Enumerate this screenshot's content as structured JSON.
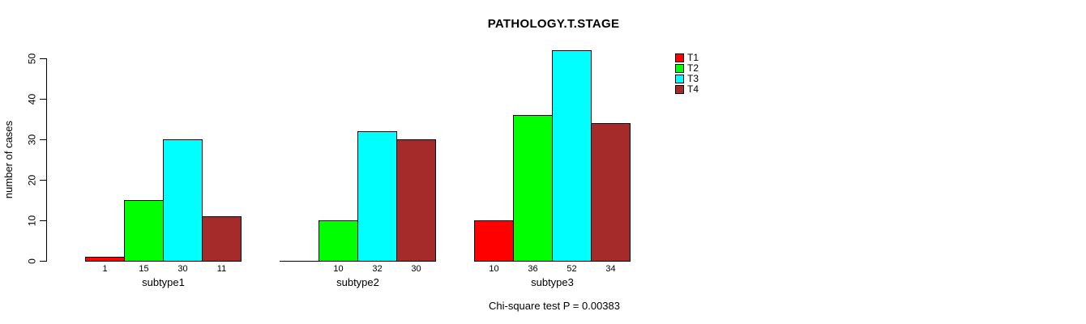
{
  "chart_data": {
    "type": "bar",
    "title": "PATHOLOGY.T.STAGE",
    "ylabel": "number of cases",
    "xlabel": "",
    "annotation": "Chi-square test P = 0.00383",
    "categories": [
      "subtype1",
      "subtype2",
      "subtype3"
    ],
    "series": [
      {
        "name": "T1",
        "color": "#ff0000",
        "values": [
          1,
          0,
          10
        ]
      },
      {
        "name": "T2",
        "color": "#00ff00",
        "values": [
          15,
          10,
          36
        ]
      },
      {
        "name": "T3",
        "color": "#00ffff",
        "values": [
          30,
          32,
          52
        ]
      },
      {
        "name": "T4",
        "color": "#a52a2a",
        "values": [
          11,
          30,
          34
        ]
      }
    ],
    "bar_value_labels": [
      [
        "1",
        "15",
        "30",
        "11"
      ],
      [
        "",
        "10",
        "32",
        "30"
      ],
      [
        "10",
        "36",
        "52",
        "34"
      ]
    ],
    "yticks": [
      "0",
      "10",
      "20",
      "30",
      "40",
      "50"
    ],
    "ylim": [
      0,
      50
    ],
    "grid": false,
    "legend_position": "top-right-outside",
    "legend_entries": [
      "T1",
      "T2",
      "T3",
      "T4"
    ],
    "axis_color": "#000000",
    "text_color": "#000000",
    "background_color": "#ffffff"
  }
}
